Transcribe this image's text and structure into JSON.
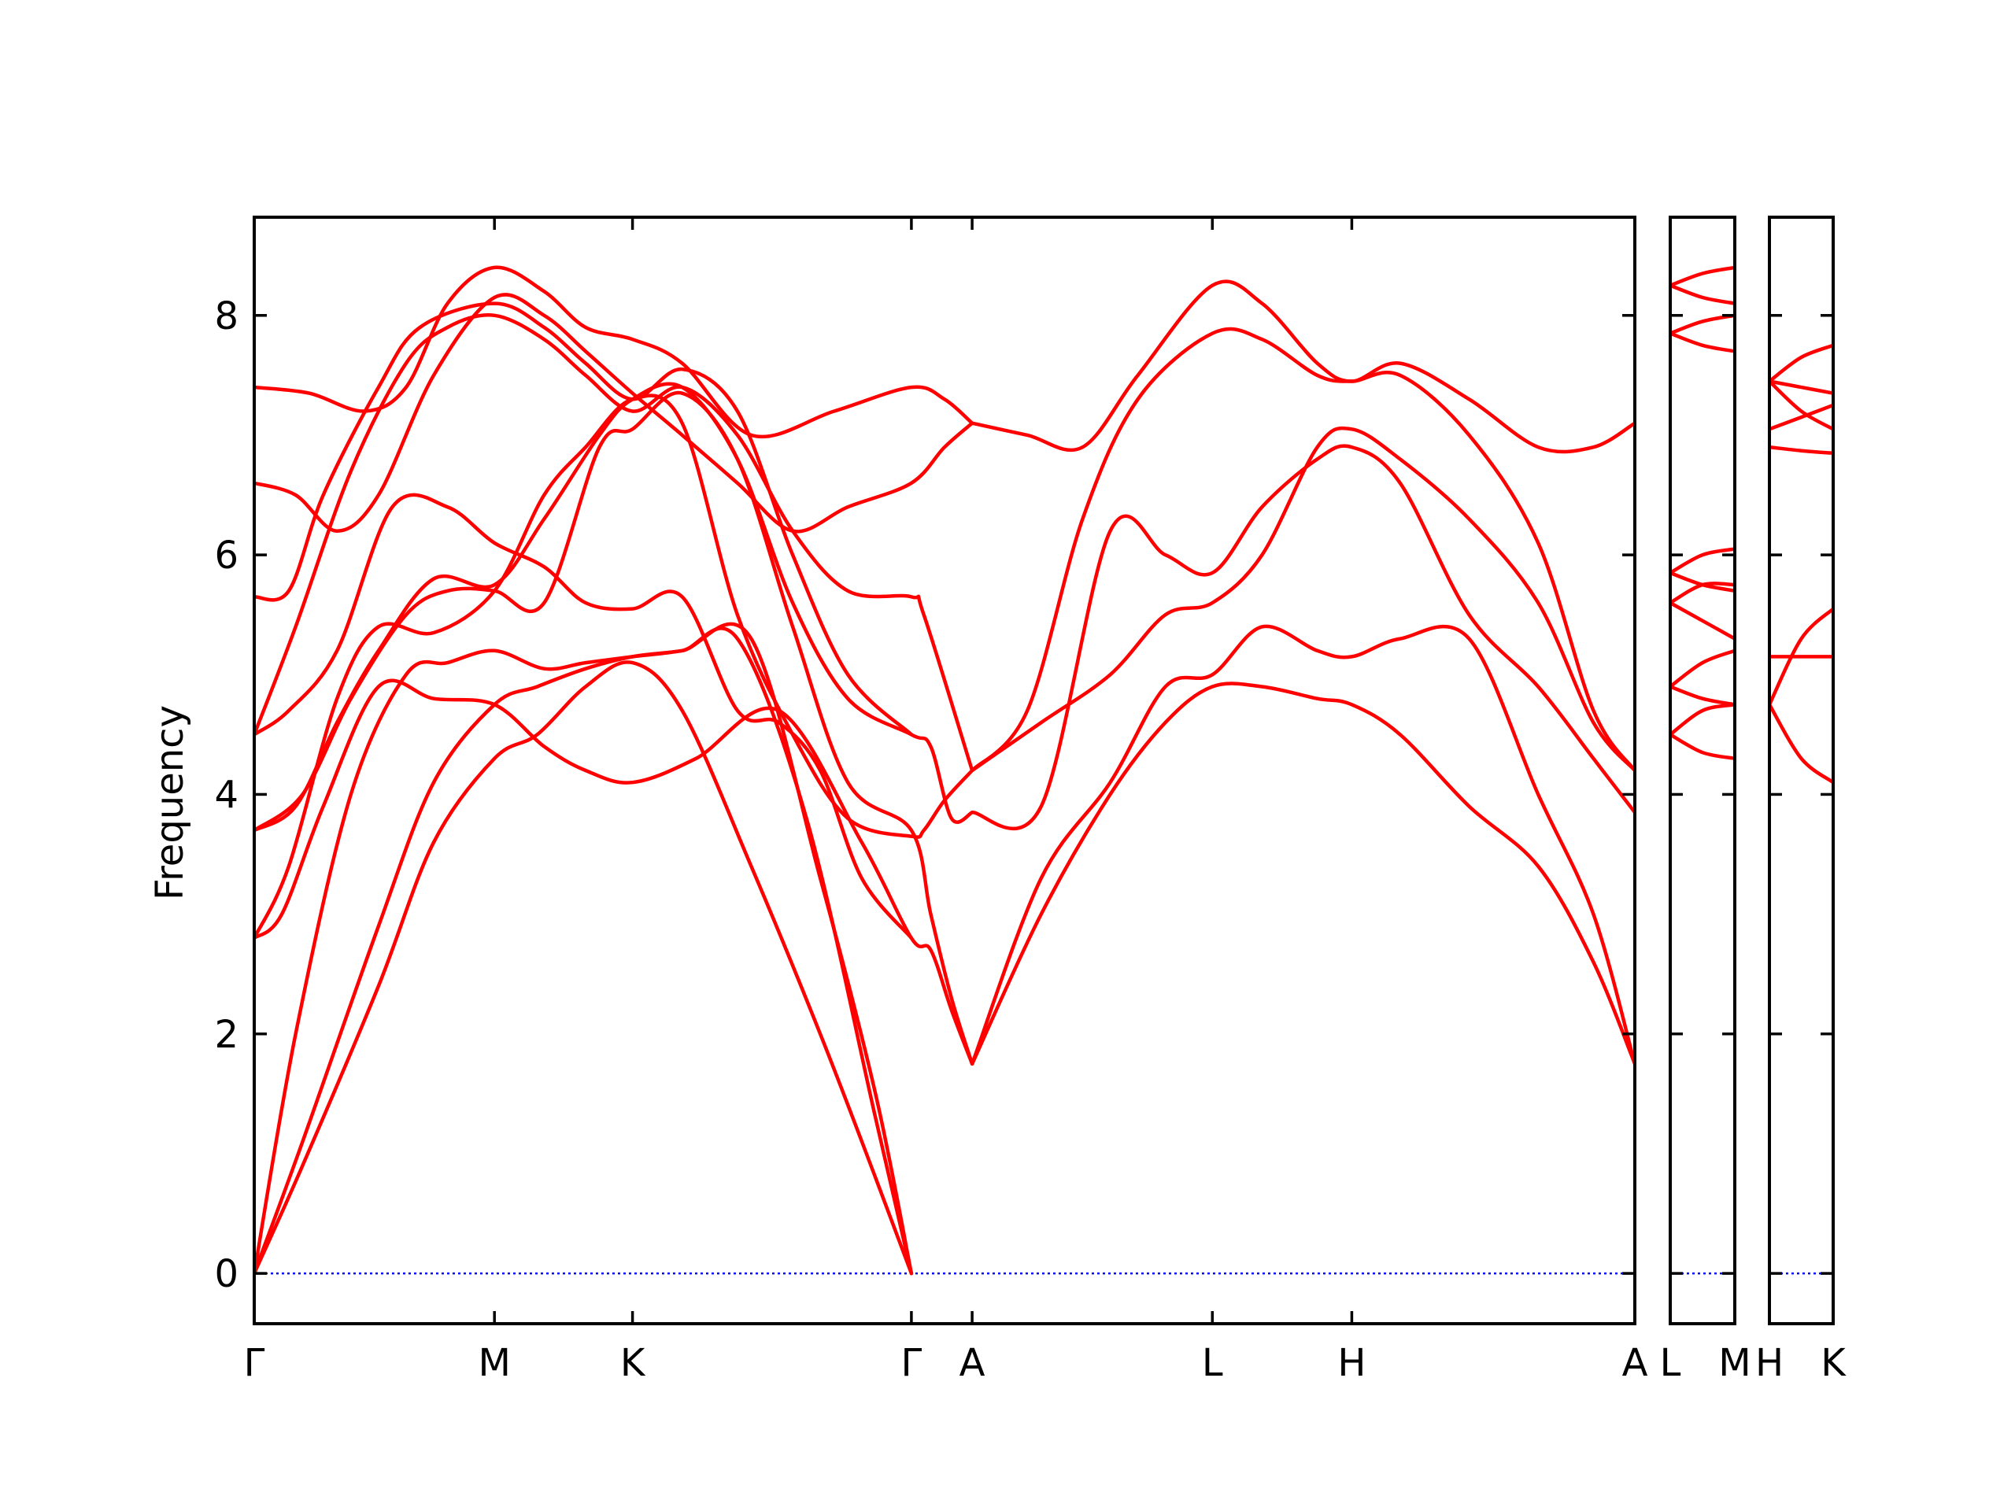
{
  "chart_data": {
    "type": "line",
    "ylabel": "Frequency",
    "ylim": [
      -0.42,
      8.82
    ],
    "yticks": [
      0,
      2,
      4,
      6,
      8
    ],
    "colors": {
      "bands": "#ff0000",
      "zero_line": "#0000ff"
    },
    "panels": [
      {
        "id": "main",
        "xlim": [
          0,
          10
        ],
        "ticks": [
          {
            "x": 0.0,
            "label": "Γ"
          },
          {
            "x": 1.74,
            "label": "M"
          },
          {
            "x": 2.74,
            "label": "K"
          },
          {
            "x": 4.76,
            "label": "Γ"
          },
          {
            "x": 5.2,
            "label": "A"
          },
          {
            "x": 6.94,
            "label": "L"
          },
          {
            "x": 7.95,
            "label": "H"
          },
          {
            "x": 10.0,
            "label": "A"
          }
        ],
        "bands": [
          {
            "x": [
              0,
              0.35,
              0.9,
              1.3,
              1.74,
              2.05,
              2.4,
              2.74,
              3.1,
              3.6,
              4.1,
              4.5,
              4.76
            ],
            "y": [
              0,
              0.9,
              2.4,
              3.6,
              4.3,
              4.5,
              4.9,
              5.1,
              4.7,
              3.4,
              2.0,
              0.8,
              0
            ]
          },
          {
            "x": [
              0,
              0.35,
              0.9,
              1.3,
              1.74,
              2.05,
              2.4,
              2.74,
              3.1,
              3.6,
              4.1,
              4.5,
              4.76
            ],
            "y": [
              0,
              1.1,
              2.9,
              4.1,
              4.75,
              4.9,
              5.05,
              5.15,
              5.2,
              5.3,
              3.3,
              1.5,
              0
            ]
          },
          {
            "x": [
              0,
              0.3,
              0.7,
              1.1,
              1.4,
              1.74,
              2.1,
              2.4,
              2.74,
              3.1,
              3.5,
              4.0,
              4.5,
              4.76
            ],
            "y": [
              0,
              2.0,
              4.0,
              5.0,
              5.1,
              5.2,
              5.05,
              5.1,
              5.15,
              5.2,
              5.3,
              3.8,
              1.3,
              0
            ]
          },
          {
            "x": [
              0,
              0.2,
              0.5,
              0.9,
              1.3,
              1.74,
              2.1,
              2.4,
              2.74,
              3.2,
              3.8,
              4.4,
              4.76,
              4.9,
              5.05,
              5.2
            ],
            "y": [
              2.8,
              3.0,
              3.9,
              4.9,
              4.8,
              4.75,
              4.4,
              4.2,
              4.1,
              4.3,
              4.7,
              3.6,
              2.8,
              2.7,
              2.2,
              1.75
            ]
          },
          {
            "x": [
              0,
              0.25,
              0.6,
              0.9,
              1.3,
              1.74,
              2.1,
              2.4,
              2.74,
              3.1,
              3.5,
              3.9,
              4.3,
              4.76,
              4.85,
              5.0,
              5.2
            ],
            "y": [
              2.8,
              3.4,
              4.8,
              5.4,
              5.35,
              5.7,
              6.5,
              6.9,
              7.3,
              7.1,
              5.5,
              4.5,
              3.8,
              3.65,
              3.7,
              3.95,
              4.2
            ]
          },
          {
            "x": [
              0,
              0.3,
              0.6,
              0.9,
              1.3,
              1.74,
              2.1,
              2.5,
              2.74,
              3.1,
              3.5,
              3.9,
              4.3,
              4.76,
              4.9,
              5.05,
              5.2
            ],
            "y": [
              3.7,
              3.9,
              4.6,
              5.2,
              5.8,
              5.75,
              6.3,
              7.0,
              7.3,
              7.4,
              6.8,
              5.6,
              4.8,
              4.5,
              4.4,
              3.8,
              3.85
            ]
          },
          {
            "x": [
              0,
              0.35,
              0.7,
              1.1,
              1.4,
              1.74,
              2.1,
              2.5,
              2.74,
              3.1,
              3.5,
              3.9,
              4.3,
              4.76,
              4.9,
              5.05,
              5.2
            ],
            "y": [
              3.7,
              4.0,
              4.8,
              5.5,
              5.7,
              5.7,
              5.6,
              6.9,
              7.05,
              7.35,
              6.8,
              5.4,
              4.1,
              3.7,
              3.0,
              2.3,
              1.75
            ]
          },
          {
            "x": [
              0,
              0.25,
              0.6,
              1.0,
              1.4,
              1.74,
              2.1,
              2.4,
              2.74,
              3.1,
              3.5,
              3.8,
              4.1,
              4.4,
              4.76
            ],
            "y": [
              4.5,
              4.7,
              5.2,
              6.4,
              6.4,
              6.1,
              5.9,
              5.6,
              5.55,
              5.65,
              4.7,
              4.6,
              4.2,
              3.3,
              2.8
            ]
          },
          {
            "x": [
              0,
              0.3,
              0.7,
              1.1,
              1.4,
              1.74,
              2.1,
              2.4,
              2.74,
              3.1,
              3.5,
              3.9,
              4.3,
              4.76,
              4.85,
              5.2
            ],
            "y": [
              4.5,
              5.4,
              6.7,
              7.6,
              7.9,
              8.0,
              7.8,
              7.5,
              7.2,
              7.4,
              7.0,
              6.2,
              5.7,
              5.65,
              5.5,
              4.2
            ]
          },
          {
            "x": [
              0,
              0.25,
              0.5,
              0.9,
              1.2,
              1.74,
              2.1,
              2.4,
              2.74,
              3.1,
              3.5,
              3.9,
              4.3,
              4.76
            ],
            "y": [
              5.65,
              5.7,
              6.5,
              7.4,
              7.9,
              8.1,
              7.9,
              7.6,
              7.3,
              7.55,
              7.2,
              6.0,
              5.0,
              4.5
            ]
          },
          {
            "x": [
              0,
              0.3,
              0.6,
              0.9,
              1.3,
              1.74,
              2.1,
              2.4,
              2.74,
              3.1,
              3.5,
              3.9,
              4.3,
              4.76,
              5.0,
              5.2
            ],
            "y": [
              6.6,
              6.5,
              6.2,
              6.5,
              7.5,
              8.15,
              8.0,
              7.7,
              7.35,
              7.0,
              6.6,
              6.2,
              6.4,
              6.6,
              6.9,
              7.1
            ]
          },
          {
            "x": [
              0,
              0.4,
              0.8,
              1.1,
              1.4,
              1.74,
              2.1,
              2.4,
              2.74,
              3.1,
              3.6,
              4.2,
              4.76,
              5.0,
              5.2
            ],
            "y": [
              7.4,
              7.35,
              7.2,
              7.4,
              8.1,
              8.4,
              8.2,
              7.9,
              7.8,
              7.6,
              7.0,
              7.2,
              7.4,
              7.3,
              7.1
            ]
          },
          {
            "x": [
              5.2,
              5.7,
              6.2,
              6.6,
              6.94,
              7.3,
              7.7,
              7.95,
              8.3,
              8.8,
              9.3,
              9.7,
              10.0
            ],
            "y": [
              1.75,
              3.0,
              4.0,
              4.6,
              4.9,
              4.9,
              4.8,
              4.75,
              4.5,
              3.9,
              3.4,
              2.6,
              1.75
            ]
          },
          {
            "x": [
              5.2,
              5.7,
              6.2,
              6.6,
              6.94,
              7.3,
              7.7,
              7.95,
              8.3,
              8.8,
              9.3,
              9.7,
              10.0
            ],
            "y": [
              1.75,
              3.3,
              4.1,
              4.9,
              5.0,
              5.4,
              5.2,
              5.15,
              5.3,
              5.3,
              4.0,
              3.0,
              1.75
            ]
          },
          {
            "x": [
              5.2,
              5.7,
              6.2,
              6.6,
              6.94,
              7.3,
              7.7,
              7.95,
              8.3,
              8.8,
              9.3,
              9.7,
              10.0
            ],
            "y": [
              3.85,
              3.9,
              6.2,
              6.0,
              5.85,
              6.4,
              6.8,
              6.9,
              6.6,
              5.5,
              4.9,
              4.3,
              3.85
            ]
          },
          {
            "x": [
              5.2,
              5.7,
              6.2,
              6.6,
              6.94,
              7.3,
              7.7,
              7.95,
              8.3,
              8.8,
              9.3,
              9.7,
              10.0
            ],
            "y": [
              4.2,
              4.6,
              5.0,
              5.5,
              5.6,
              6.0,
              6.9,
              7.05,
              6.8,
              6.3,
              5.6,
              4.6,
              4.2
            ]
          },
          {
            "x": [
              5.2,
              5.6,
              6.0,
              6.4,
              6.94,
              7.3,
              7.7,
              7.95,
              8.3,
              8.8,
              9.3,
              9.7,
              10.0
            ],
            "y": [
              4.2,
              4.7,
              6.3,
              7.3,
              7.85,
              7.8,
              7.5,
              7.45,
              7.5,
              7.0,
              6.1,
              4.7,
              4.2
            ]
          },
          {
            "x": [
              5.2,
              5.6,
              6.0,
              6.4,
              6.94,
              7.3,
              7.7,
              7.95,
              8.3,
              8.8,
              9.3,
              9.7,
              10.0
            ],
            "y": [
              7.1,
              7.0,
              6.9,
              7.5,
              8.25,
              8.1,
              7.6,
              7.45,
              7.6,
              7.3,
              6.9,
              6.9,
              7.1
            ]
          }
        ]
      },
      {
        "id": "L-M",
        "xlim": [
          0,
          1
        ],
        "ticks": [
          {
            "x": 0.0,
            "label": "L"
          },
          {
            "x": 1.0,
            "label": "M"
          }
        ],
        "bands": [
          {
            "x": [
              0,
              0.5,
              1
            ],
            "y": [
              4.5,
              4.35,
              4.3
            ]
          },
          {
            "x": [
              0,
              0.5,
              1
            ],
            "y": [
              4.5,
              4.7,
              4.75
            ]
          },
          {
            "x": [
              0,
              0.5,
              1
            ],
            "y": [
              4.9,
              4.8,
              4.75
            ]
          },
          {
            "x": [
              0,
              0.5,
              1
            ],
            "y": [
              4.9,
              5.1,
              5.2
            ]
          },
          {
            "x": [
              0,
              0.5,
              1
            ],
            "y": [
              5.6,
              5.45,
              5.3
            ]
          },
          {
            "x": [
              0,
              0.5,
              1
            ],
            "y": [
              5.6,
              5.75,
              5.75
            ]
          },
          {
            "x": [
              0,
              0.5,
              1
            ],
            "y": [
              5.85,
              5.75,
              5.7
            ]
          },
          {
            "x": [
              0,
              0.5,
              1
            ],
            "y": [
              5.85,
              6.0,
              6.05
            ]
          },
          {
            "x": [
              0,
              0.5,
              1
            ],
            "y": [
              7.85,
              7.75,
              7.7
            ]
          },
          {
            "x": [
              0,
              0.5,
              1
            ],
            "y": [
              7.85,
              7.95,
              8.0
            ]
          },
          {
            "x": [
              0,
              0.5,
              1
            ],
            "y": [
              8.25,
              8.15,
              8.1
            ]
          },
          {
            "x": [
              0,
              0.5,
              1
            ],
            "y": [
              8.25,
              8.35,
              8.4
            ]
          }
        ]
      },
      {
        "id": "H-K",
        "xlim": [
          0,
          1
        ],
        "ticks": [
          {
            "x": 0.0,
            "label": "H"
          },
          {
            "x": 1.0,
            "label": "K"
          }
        ],
        "bands": [
          {
            "x": [
              0,
              0.5,
              1
            ],
            "y": [
              4.75,
              4.3,
              4.1
            ]
          },
          {
            "x": [
              0,
              0.5,
              1
            ],
            "y": [
              4.75,
              5.3,
              5.55
            ]
          },
          {
            "x": [
              0,
              0.5,
              1
            ],
            "y": [
              5.15,
              5.15,
              5.15
            ]
          },
          {
            "x": [
              0,
              0.5,
              1
            ],
            "y": [
              6.9,
              6.87,
              6.85
            ]
          },
          {
            "x": [
              0,
              0.5,
              1
            ],
            "y": [
              7.05,
              7.15,
              7.25
            ]
          },
          {
            "x": [
              0,
              0.5,
              1
            ],
            "y": [
              7.45,
              7.2,
              7.05
            ]
          },
          {
            "x": [
              0,
              0.5,
              1
            ],
            "y": [
              7.45,
              7.4,
              7.35
            ]
          },
          {
            "x": [
              0,
              0.5,
              1
            ],
            "y": [
              7.45,
              7.65,
              7.75
            ]
          }
        ]
      }
    ]
  }
}
